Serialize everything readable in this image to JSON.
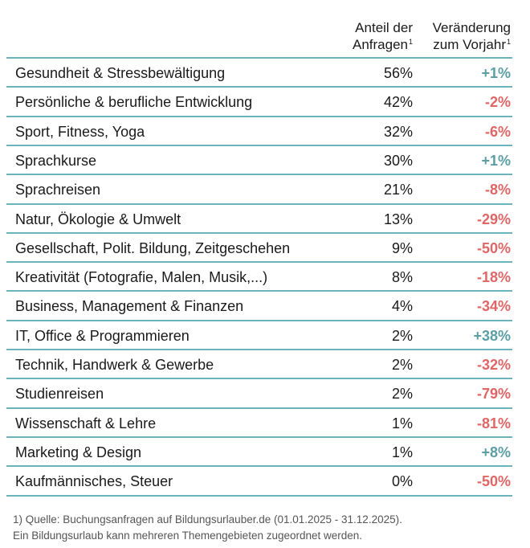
{
  "header": {
    "col_share_line1": "Anteil der",
    "col_share_line2": "Anfragen",
    "col_share_note": "1",
    "col_change_line1": "Veränderung",
    "col_change_line2": "zum Vorjahr",
    "col_change_note": "1"
  },
  "colors": {
    "rule": "#6cb3bb",
    "positive": "#5b9ea6",
    "negative": "#e06666"
  },
  "rows": [
    {
      "topic": "Gesundheit & Stressbewältigung",
      "share": "56%",
      "change": "+1%",
      "trend": "pos"
    },
    {
      "topic": "Persönliche & berufliche Entwicklung",
      "share": "42%",
      "change": "-2%",
      "trend": "neg"
    },
    {
      "topic": "Sport, Fitness, Yoga",
      "share": "32%",
      "change": "-6%",
      "trend": "neg"
    },
    {
      "topic": "Sprachkurse",
      "share": "30%",
      "change": "+1%",
      "trend": "pos"
    },
    {
      "topic": "Sprachreisen",
      "share": "21%",
      "change": "-8%",
      "trend": "neg"
    },
    {
      "topic": "Natur, Ökologie & Umwelt",
      "share": "13%",
      "change": "-29%",
      "trend": "neg"
    },
    {
      "topic": "Gesellschaft, Polit. Bildung, Zeitgeschehen",
      "share": "9%",
      "change": "-50%",
      "trend": "neg"
    },
    {
      "topic": "Kreativität (Fotografie, Malen, Musik,...)",
      "share": "8%",
      "change": "-18%",
      "trend": "neg"
    },
    {
      "topic": "Business, Management & Finanzen",
      "share": "4%",
      "change": "-34%",
      "trend": "neg"
    },
    {
      "topic": "IT, Office & Programmieren",
      "share": "2%",
      "change": "+38%",
      "trend": "pos"
    },
    {
      "topic": "Technik, Handwerk & Gewerbe",
      "share": "2%",
      "change": "-32%",
      "trend": "neg"
    },
    {
      "topic": "Studienreisen",
      "share": "2%",
      "change": "-79%",
      "trend": "neg"
    },
    {
      "topic": "Wissenschaft & Lehre",
      "share": "1%",
      "change": "-81%",
      "trend": "neg"
    },
    {
      "topic": "Marketing & Design",
      "share": "1%",
      "change": "+8%",
      "trend": "pos"
    },
    {
      "topic": "Kaufmännisches, Steuer",
      "share": "0%",
      "change": "-50%",
      "trend": "neg"
    }
  ],
  "footnote": {
    "line1": "1) Quelle: Buchungsanfragen auf Bildungsurlauber.de (01.01.2025 - 31.12.2025).",
    "line2": "Ein Bildungsurlaub kann mehreren Themengebieten zugeordnet werden."
  }
}
